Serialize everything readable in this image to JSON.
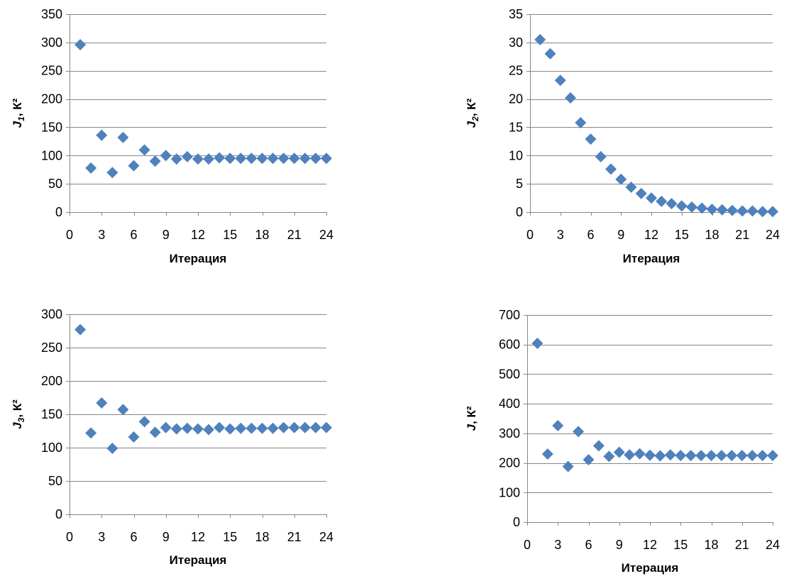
{
  "chart_data": [
    {
      "type": "scatter",
      "xlabel": "Итерация",
      "ylabel": {
        "main": "J",
        "sub": "1",
        "rest": ", К²"
      },
      "xlim": [
        0,
        24
      ],
      "xticks": [
        0,
        3,
        6,
        9,
        12,
        15,
        18,
        21,
        24
      ],
      "ylim": [
        0,
        350
      ],
      "yticks": [
        0,
        50,
        100,
        150,
        200,
        250,
        300,
        350
      ],
      "grid": "horizontal",
      "marker": "diamond",
      "color": "#4f81bd",
      "x": [
        1,
        2,
        3,
        4,
        5,
        6,
        7,
        8,
        9,
        10,
        11,
        12,
        13,
        14,
        15,
        16,
        17,
        18,
        19,
        20,
        21,
        22,
        23,
        24
      ],
      "y": [
        296,
        78,
        136,
        70,
        132,
        82,
        110,
        90,
        100,
        94,
        98,
        94,
        94,
        96,
        95,
        95,
        95,
        95,
        95,
        95,
        95,
        95,
        95,
        95
      ]
    },
    {
      "type": "scatter",
      "xlabel": "Итерация",
      "ylabel": {
        "main": "J",
        "sub": "2",
        "rest": ", К²"
      },
      "xlim": [
        0,
        24
      ],
      "xticks": [
        0,
        3,
        6,
        9,
        12,
        15,
        18,
        21,
        24
      ],
      "ylim": [
        0,
        35
      ],
      "yticks": [
        0,
        5,
        10,
        15,
        20,
        25,
        30,
        35
      ],
      "grid": "horizontal",
      "marker": "diamond",
      "color": "#4f81bd",
      "x": [
        1,
        2,
        3,
        4,
        5,
        6,
        7,
        8,
        9,
        10,
        11,
        12,
        13,
        14,
        15,
        16,
        17,
        18,
        19,
        20,
        21,
        22,
        23,
        24
      ],
      "y": [
        30.5,
        28,
        23.3,
        20.2,
        15.8,
        12.9,
        9.8,
        7.6,
        5.8,
        4.4,
        3.3,
        2.5,
        1.9,
        1.5,
        1.1,
        0.9,
        0.7,
        0.5,
        0.4,
        0.3,
        0.2,
        0.2,
        0.1,
        0.1
      ]
    },
    {
      "type": "scatter",
      "xlabel": "Итерация",
      "ylabel": {
        "main": "J",
        "sub": "3",
        "rest": ", К²"
      },
      "xlim": [
        0,
        24
      ],
      "xticks": [
        0,
        3,
        6,
        9,
        12,
        15,
        18,
        21,
        24
      ],
      "ylim": [
        0,
        300
      ],
      "yticks": [
        0,
        50,
        100,
        150,
        200,
        250,
        300
      ],
      "grid": "horizontal",
      "marker": "diamond",
      "color": "#4f81bd",
      "x": [
        1,
        2,
        3,
        4,
        5,
        6,
        7,
        8,
        9,
        10,
        11,
        12,
        13,
        14,
        15,
        16,
        17,
        18,
        19,
        20,
        21,
        22,
        23,
        24
      ],
      "y": [
        277,
        122,
        167,
        99,
        157,
        116,
        139,
        123,
        130,
        128,
        129,
        128,
        127,
        130,
        128,
        129,
        129,
        129,
        129,
        130,
        130,
        130,
        130,
        130
      ]
    },
    {
      "type": "scatter",
      "xlabel": "Итерация",
      "ylabel": {
        "main": "J",
        "sub": "",
        "rest": ", К²"
      },
      "xlim": [
        0,
        24
      ],
      "xticks": [
        0,
        3,
        6,
        9,
        12,
        15,
        18,
        21,
        24
      ],
      "ylim": [
        0,
        700
      ],
      "yticks": [
        0,
        100,
        200,
        300,
        400,
        500,
        600,
        700
      ],
      "grid": "horizontal",
      "marker": "diamond",
      "color": "#4f81bd",
      "x": [
        1,
        2,
        3,
        4,
        5,
        6,
        7,
        8,
        9,
        10,
        11,
        12,
        13,
        14,
        15,
        16,
        17,
        18,
        19,
        20,
        21,
        22,
        23,
        24
      ],
      "y": [
        604,
        230,
        326,
        188,
        306,
        211,
        258,
        222,
        236,
        227,
        231,
        226,
        224,
        227,
        225,
        225,
        225,
        225,
        225,
        225,
        225,
        225,
        225,
        225
      ]
    }
  ]
}
